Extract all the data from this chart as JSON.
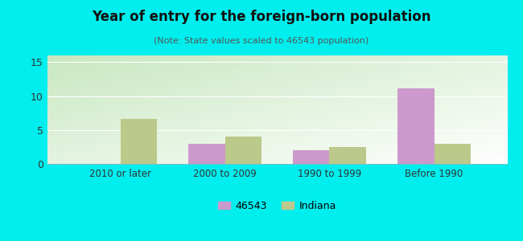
{
  "title": "Year of entry for the foreign-born population",
  "subtitle": "(Note: State values scaled to 46543 population)",
  "categories": [
    "2010 or later",
    "2000 to 2009",
    "1990 to 1999",
    "Before 1990"
  ],
  "series_46543": [
    0,
    3.0,
    2.0,
    11.1
  ],
  "series_indiana": [
    6.6,
    4.0,
    2.5,
    3.0
  ],
  "color_46543": "#cc99cc",
  "color_indiana": "#bbc98a",
  "background_color": "#00eeee",
  "plot_bg_top_left": "#d4ecd4",
  "plot_bg_top_right": "#f0f8f0",
  "plot_bg_bottom": "#c8e8c0",
  "ylim": [
    0,
    16
  ],
  "yticks": [
    0,
    5,
    10,
    15
  ],
  "bar_width": 0.35,
  "legend_46543": "46543",
  "legend_indiana": "Indiana"
}
